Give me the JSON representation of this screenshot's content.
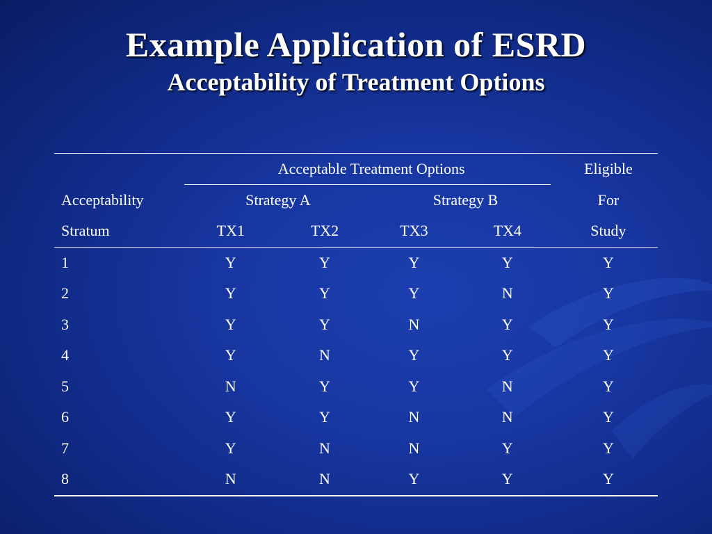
{
  "slide": {
    "title": "Example Application of ESRD",
    "subtitle": "Acceptability of Treatment Options"
  },
  "table": {
    "header": {
      "group_label": "Acceptable Treatment Options",
      "eligible_line1": "Eligible",
      "eligible_line2": "For",
      "eligible_line3": "Study",
      "stratum_line1": "Acceptability",
      "stratum_line2": "Stratum",
      "strategy_a": "Strategy A",
      "strategy_b": "Strategy B",
      "tx1": "TX1",
      "tx2": "TX2",
      "tx3": "TX3",
      "tx4": "TX4"
    },
    "rows": [
      {
        "stratum": "1",
        "tx1": "Y",
        "tx2": "Y",
        "tx3": "Y",
        "tx4": "Y",
        "eligible": "Y"
      },
      {
        "stratum": "2",
        "tx1": "Y",
        "tx2": "Y",
        "tx3": "Y",
        "tx4": "N",
        "eligible": "Y"
      },
      {
        "stratum": "3",
        "tx1": "Y",
        "tx2": "Y",
        "tx3": "N",
        "tx4": "Y",
        "eligible": "Y"
      },
      {
        "stratum": "4",
        "tx1": "Y",
        "tx2": "N",
        "tx3": "Y",
        "tx4": "Y",
        "eligible": "Y"
      },
      {
        "stratum": "5",
        "tx1": "N",
        "tx2": "Y",
        "tx3": "Y",
        "tx4": "N",
        "eligible": "Y"
      },
      {
        "stratum": "6",
        "tx1": "Y",
        "tx2": "Y",
        "tx3": "N",
        "tx4": "N",
        "eligible": "Y"
      },
      {
        "stratum": "7",
        "tx1": "Y",
        "tx2": "N",
        "tx3": "N",
        "tx4": "Y",
        "eligible": "Y"
      },
      {
        "stratum": "8",
        "tx1": "N",
        "tx2": "N",
        "tx3": "Y",
        "tx4": "Y",
        "eligible": "Y"
      }
    ]
  },
  "theme": {
    "background": "#1736a0",
    "text_color": "#ffffff"
  }
}
